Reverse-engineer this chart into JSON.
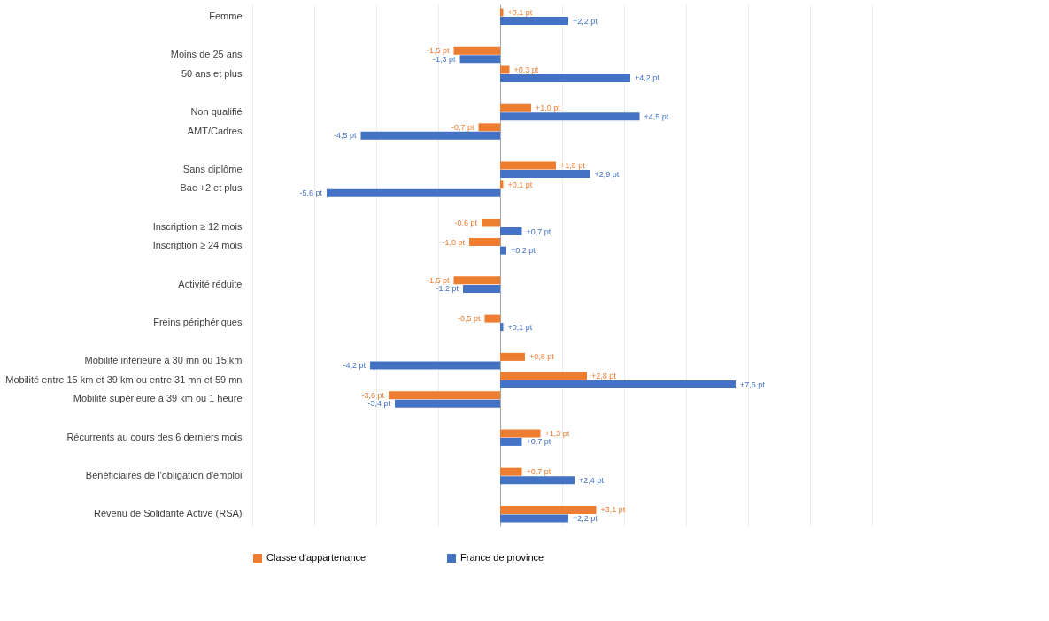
{
  "chart_data": {
    "type": "bar",
    "orientation": "horizontal",
    "categories": [
      "Femme",
      null,
      "Moins de 25 ans",
      "50 ans et plus",
      null,
      "Non qualifié",
      "AMT/Cadres",
      null,
      "Sans diplôme",
      "Bac +2 et plus",
      null,
      "Inscription ≥ 12 mois",
      "Inscription ≥ 24 mois",
      null,
      "Activité réduite",
      null,
      "Freins périphériques",
      null,
      "Mobilité inférieure à 30 mn ou 15 km",
      "Mobilité entre 15 km et 39 km ou entre 31 mn et 59 mn",
      "Mobilité supérieure à 39 km ou 1 heure",
      null,
      "Récurrents au cours des 6 derniers mois",
      null,
      "Bénéficiaires de l'obligation d'emploi",
      null,
      "Revenu de Solidarité Active (RSA)"
    ],
    "series": [
      {
        "name": "Classe d'appartenance",
        "color": "#ed7d31",
        "values": [
          0.1,
          null,
          -1.5,
          0.3,
          null,
          1.0,
          -0.7,
          null,
          1.8,
          0.1,
          null,
          -0.6,
          -1.0,
          null,
          -1.5,
          null,
          -0.5,
          null,
          0.8,
          2.8,
          -3.6,
          null,
          1.3,
          null,
          0.7,
          null,
          3.1
        ],
        "value_labels": [
          "+0,1 pt",
          null,
          "-1,5 pt",
          "+0,3 pt",
          null,
          "+1,0 pt",
          "-0,7 pt",
          null,
          "+1,8 pt",
          "+0,1 pt",
          null,
          "-0,6 pt",
          "-1,0 pt",
          null,
          "-1,5 pt",
          null,
          "-0,5 pt",
          null,
          "+0,8 pt",
          "+2,8 pt",
          "-3,6 pt",
          null,
          "+1,3 pt",
          null,
          "+0,7 pt",
          null,
          "+3,1 pt"
        ]
      },
      {
        "name": "France de province",
        "color": "#4472c4",
        "values": [
          2.2,
          null,
          -1.3,
          4.2,
          null,
          4.5,
          -4.5,
          null,
          2.9,
          -5.6,
          null,
          0.7,
          0.2,
          null,
          -1.2,
          null,
          0.1,
          null,
          -4.2,
          7.6,
          -3.4,
          null,
          0.7,
          null,
          2.4,
          null,
          2.2
        ],
        "value_labels": [
          "+2,2 pt",
          null,
          "-1,3 pt",
          "+4,2 pt",
          null,
          "+4,5 pt",
          "-4,5 pt",
          null,
          "+2,9 pt",
          "-5,6 pt",
          null,
          "+0,7 pt",
          "+0,2 pt",
          null,
          "-1,2 pt",
          null,
          "+0,1 pt",
          null,
          "-4,2 pt",
          "+7,6 pt",
          "-3,4 pt",
          null,
          "+0,7 pt",
          null,
          "+2,4 pt",
          null,
          "+2,2 pt"
        ]
      }
    ],
    "xlim": [
      -8,
      12
    ],
    "xticks": [
      {
        "value": -8,
        "label": null
      },
      {
        "value": -6,
        "label": null
      },
      {
        "value": -4,
        "label": null
      },
      {
        "value": -2,
        "label": null
      },
      {
        "value": 0,
        "label": null
      },
      {
        "value": 2,
        "label": null
      },
      {
        "value": 4,
        "label": null
      },
      {
        "value": 6,
        "label": null
      },
      {
        "value": 8,
        "label": null
      },
      {
        "value": 10,
        "label": null
      },
      {
        "value": 12,
        "label": null
      }
    ],
    "grid": "x",
    "legend": "bottom"
  }
}
